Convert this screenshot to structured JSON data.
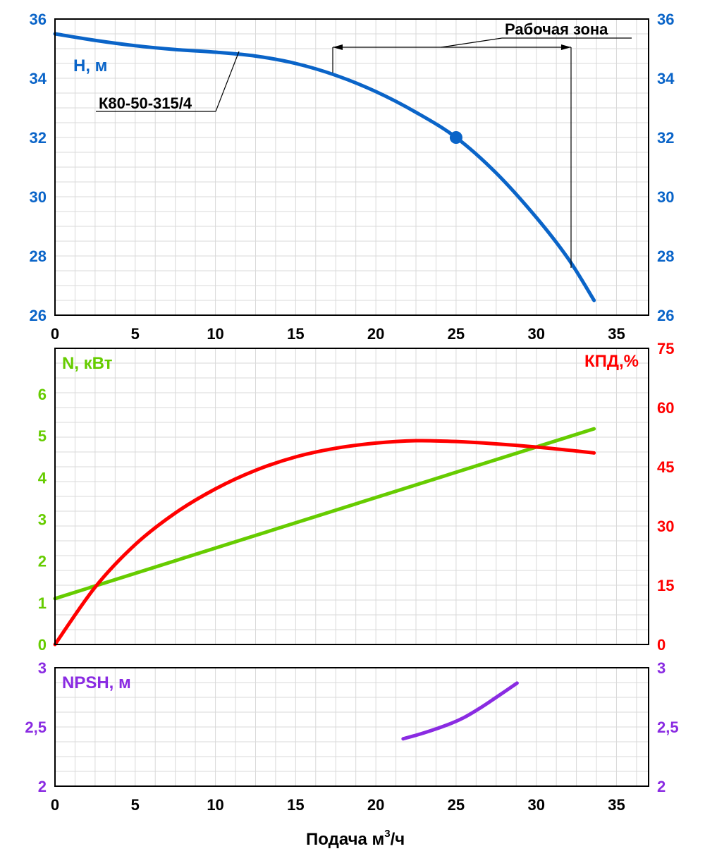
{
  "chart_data": [
    {
      "type": "line",
      "panel": "head",
      "ylabel": "H, м",
      "ylim": [
        26,
        36
      ],
      "yticks": [
        "26",
        "28",
        "30",
        "32",
        "34",
        "36"
      ],
      "xlim": [
        0,
        37
      ],
      "xticks": [
        "0",
        "5",
        "10",
        "15",
        "20",
        "25",
        "30",
        "35"
      ],
      "grid": true,
      "series": [
        {
          "name": "К80-50-315/4",
          "color": "#0a64c8",
          "x": [
            0,
            2.5,
            5,
            7.5,
            10,
            12.5,
            15,
            17.5,
            20,
            22.5,
            25,
            27.5,
            30,
            32,
            33.6
          ],
          "y": [
            35.5,
            35.28,
            35.1,
            34.97,
            34.88,
            34.75,
            34.5,
            34.1,
            33.55,
            32.85,
            32.0,
            30.8,
            29.3,
            27.9,
            26.5
          ]
        }
      ],
      "operating_point": {
        "x": 25,
        "y": 32
      },
      "annotations": [
        {
          "text": "Рабочая зона",
          "x_range": [
            17.5,
            32.5
          ]
        }
      ]
    },
    {
      "type": "line",
      "panel": "power_efficiency",
      "ylabel_left": "N, кВт",
      "ylabel_right": "КПД,%",
      "ylim_left": [
        0,
        7.1
      ],
      "ylim_right": [
        0,
        75
      ],
      "yticks_left": [
        "0",
        "1",
        "2",
        "3",
        "4",
        "5",
        "6"
      ],
      "yticks_right": [
        "0",
        "15",
        "30",
        "45",
        "60",
        "75"
      ],
      "xlim": [
        0,
        37
      ],
      "grid": true,
      "series": [
        {
          "name": "N, кВт",
          "axis": "left",
          "color": "#66cc00",
          "x": [
            0,
            33.6
          ],
          "y": [
            1.1,
            5.17
          ]
        },
        {
          "name": "КПД,%",
          "axis": "right",
          "color": "#ff0000",
          "x": [
            0,
            2.5,
            5,
            7.5,
            10,
            12.5,
            15,
            17.5,
            20,
            22.5,
            25,
            27.5,
            30,
            32.5,
            33.6
          ],
          "y": [
            0,
            14.5,
            25.3,
            33.3,
            39.4,
            44.1,
            47.5,
            49.7,
            51.0,
            51.6,
            51.4,
            50.8,
            50.0,
            49.0,
            48.5
          ]
        }
      ]
    },
    {
      "type": "line",
      "panel": "npsh",
      "ylabel": "NPSH, м",
      "ylim": [
        2,
        3
      ],
      "yticks": [
        "2",
        "2,5",
        "3"
      ],
      "xlim": [
        0,
        37
      ],
      "xticks": [
        "0",
        "5",
        "10",
        "15",
        "20",
        "25",
        "30",
        "35"
      ],
      "xlabel": "Подача м³/ч",
      "grid": true,
      "series": [
        {
          "name": "NPSH, м",
          "color": "#8a2be2",
          "x": [
            21.7,
            23,
            24.5,
            25.5,
            26.5,
            27.5,
            28.8
          ],
          "y": [
            2.4,
            2.45,
            2.52,
            2.58,
            2.66,
            2.75,
            2.87
          ]
        }
      ]
    }
  ],
  "colors": {
    "head": "#0a64c8",
    "power": "#66cc00",
    "efficiency": "#ff0000",
    "npsh": "#8a2be2"
  },
  "labels": {
    "head_axis": "H, м",
    "power_axis": "N, кВт",
    "eff_axis": "КПД,%",
    "npsh_axis": "NPSH, м",
    "pump_model": "К80-50-315/4",
    "work_zone": "Рабочая зона",
    "x_title": "Подача м",
    "x_title_sup": "3",
    "x_title_suffix": "/ч"
  }
}
